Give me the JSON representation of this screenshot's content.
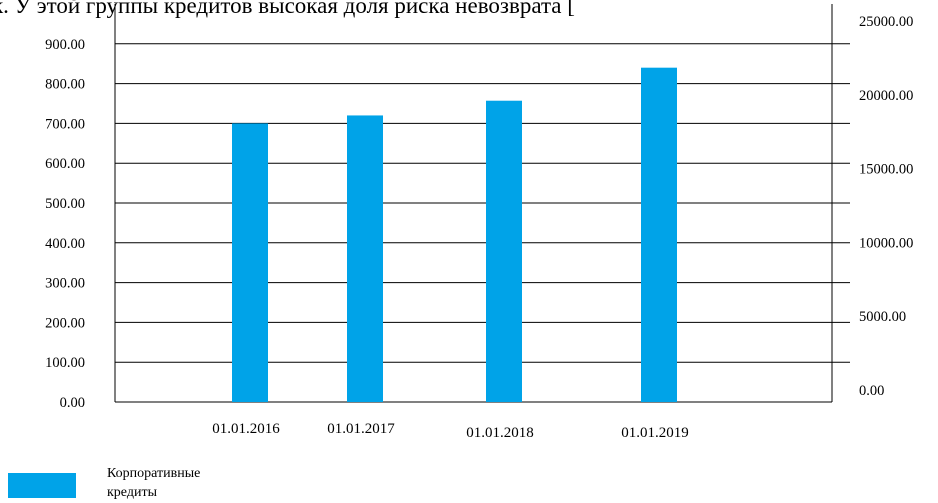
{
  "caption_text": "к. У этой группы кредитов высокая доля риска невозврата [",
  "chart_data": {
    "type": "bar",
    "categories": [
      "01.01.2016",
      "01.01.2017",
      "01.01.2018",
      "01.01.2019"
    ],
    "series": [
      {
        "name": "Корпоративные кредиты",
        "values": [
          700,
          720,
          757,
          840
        ],
        "color": "#00a3e8"
      }
    ],
    "ylim": [
      0,
      1000
    ],
    "yticks": [
      "0.00",
      "100.00",
      "200.00",
      "300.00",
      "400.00",
      "500.00",
      "600.00",
      "700.00",
      "800.00",
      "900.00"
    ],
    "y2ticks": [
      "0.00",
      "5000.00",
      "10000.00",
      "15000.00",
      "20000.00",
      "25000.00"
    ],
    "grid": true,
    "legend_position": "bottom-left"
  }
}
